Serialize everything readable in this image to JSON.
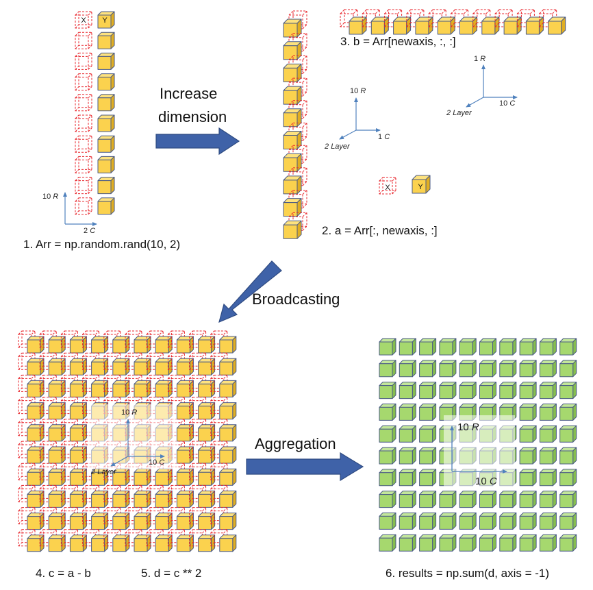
{
  "colors": {
    "yellow_front": "#fbd24e",
    "yellow_top": "#fde27e",
    "yellow_side": "#e0ae22",
    "green_front": "#a6d86e",
    "green_top": "#c3e79a",
    "green_side": "#86bd4f",
    "cube_edge": "#4a5a86",
    "red_dashed": "#e8262c",
    "arrow_fill": "#3f62a8",
    "arrow_stroke": "#2e4a80",
    "axis_line": "#4f81bd"
  },
  "panel1": {
    "x_label": "X",
    "y_label": "Y",
    "axis_r": "10",
    "axis_r_italic": "R",
    "axis_c": "2",
    "axis_c_italic": "C",
    "caption": "1. Arr =  np.random.rand(10, 2)"
  },
  "arrow_increase": {
    "line1": "Increase",
    "line2": "dimension"
  },
  "panel2": {
    "caption_a": "2. a = Arr[:, newaxis, :]",
    "caption_b": "3. b =  Arr[newaxis, :,  :]",
    "axis_a": {
      "r": "10",
      "r_it": "R",
      "c": "1",
      "c_it": "C",
      "l": "2",
      "l_it": "Layer"
    },
    "axis_b": {
      "r": "1",
      "r_it": "R",
      "c": "10",
      "c_it": "C",
      "l": "2",
      "l_it": "Layer"
    },
    "x_label": "X",
    "y_label": "Y"
  },
  "arrow_broadcast": {
    "label": "Broadcasting"
  },
  "panel3": {
    "axis": {
      "r": "10",
      "r_it": "R",
      "c": "10",
      "c_it": "C",
      "l": "2",
      "l_it": "Layer"
    },
    "caption_c": "4. c = a - b",
    "caption_d": "5. d = c ** 2"
  },
  "arrow_aggregate": {
    "label": "Aggregation"
  },
  "panel4": {
    "axis": {
      "r": "10",
      "r_it": "R",
      "c": "10",
      "c_it": "C"
    },
    "caption": "6. results = np.sum(d, axis = -1)"
  }
}
